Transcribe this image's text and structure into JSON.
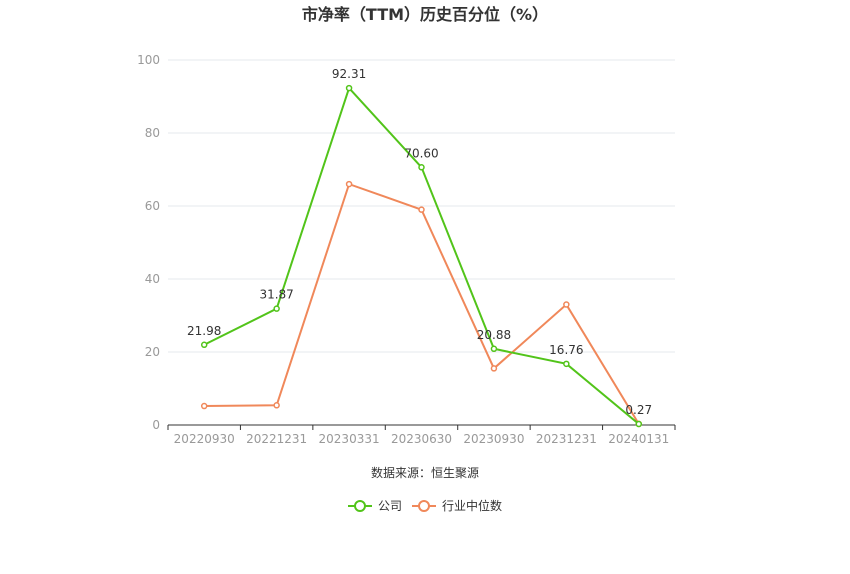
{
  "chart_data": {
    "type": "line",
    "title": "市净率（TTM）历史百分位（%）",
    "categories": [
      "20220930",
      "20221231",
      "20230331",
      "20230630",
      "20230930",
      "20231231",
      "20240131"
    ],
    "ylim": [
      0,
      100
    ],
    "yticks": [
      0,
      20,
      40,
      60,
      80,
      100
    ],
    "grid": true,
    "legend_position": "bottom",
    "source": "数据来源：恒生聚源",
    "series": [
      {
        "name": "公司",
        "color": "#52c41a",
        "values": [
          21.98,
          31.87,
          92.31,
          70.6,
          20.88,
          16.76,
          0.27
        ],
        "labels": [
          "21.98",
          "31.87",
          "92.31",
          "70.60",
          "20.88",
          "16.76",
          "0.27"
        ]
      },
      {
        "name": "行业中位数",
        "color": "#f0885a",
        "values": [
          5.2,
          5.4,
          66.0,
          59.0,
          15.5,
          33.0,
          0.3
        ]
      }
    ]
  }
}
